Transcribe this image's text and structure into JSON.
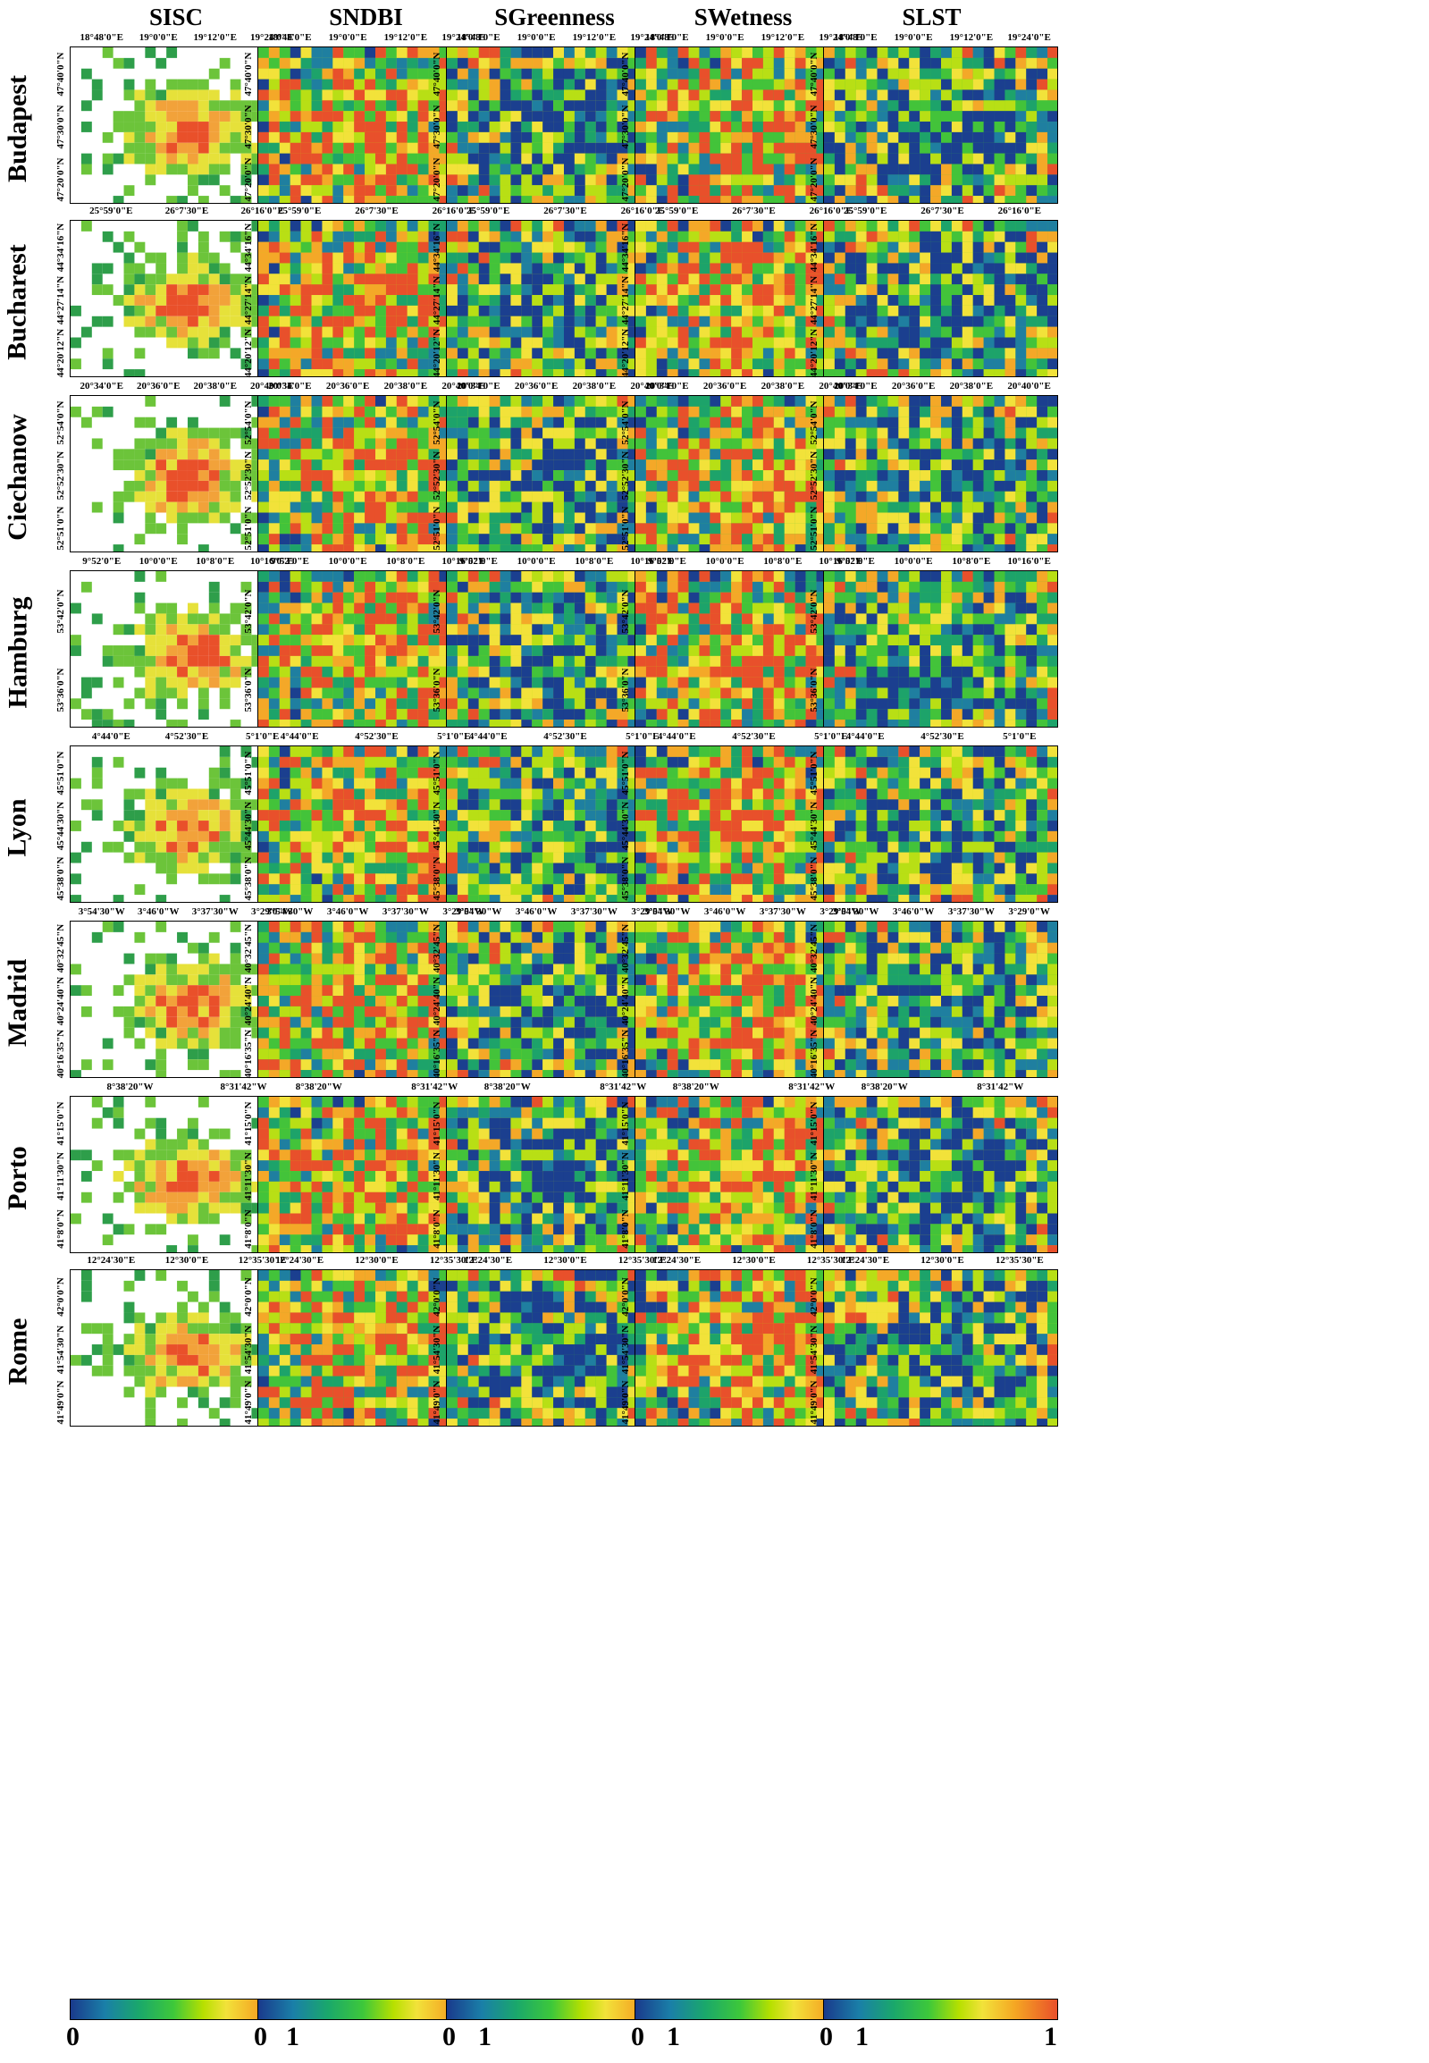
{
  "columns": [
    "SISC",
    "SNDBI",
    "SGreenness",
    "SWetness",
    "SLST"
  ],
  "colorbar": {
    "min_label": "0",
    "max_label": "1",
    "colors": [
      "#1a3a8c",
      "#1a7fa8",
      "#1aa86b",
      "#3ec83a",
      "#b7e000",
      "#f2e23a",
      "#f5a623",
      "#e9502a"
    ]
  },
  "palettes": {
    "urban": [
      "#ffffff",
      "#2e9e4a",
      "#6cc43a",
      "#e6e13a",
      "#f2a23a",
      "#e9502a"
    ],
    "index": [
      "#1b3f8f",
      "#1f7fa0",
      "#1da36a",
      "#43c33a",
      "#b8df15",
      "#f2e23a",
      "#f4a828",
      "#e8502b"
    ]
  },
  "rows": [
    {
      "city": "Budapest",
      "top": [
        "18°48'0\"E",
        "19°0'0\"E",
        "19°12'0\"E",
        "19°24'0\"E"
      ],
      "left": [
        "47°40'0\"N",
        "47°30'0\"N",
        "47°20'0\"N"
      ]
    },
    {
      "city": "Bucharest",
      "top": [
        "25°59'0\"E",
        "26°7'30\"E",
        "26°16'0\"E"
      ],
      "left": [
        "44°34'16\"N",
        "44°27'14\"N",
        "44°20'12\"N"
      ]
    },
    {
      "city": "Ciechanow",
      "top": [
        "20°34'0\"E",
        "20°36'0\"E",
        "20°38'0\"E",
        "20°40'0\"E"
      ],
      "left": [
        "52°54'0\"N",
        "52°52'30\"N",
        "52°51'0\"N"
      ]
    },
    {
      "city": "Hamburg",
      "top": [
        "9°52'0\"E",
        "10°0'0\"E",
        "10°8'0\"E",
        "10°16'0\"E"
      ],
      "left": [
        "53°42'0\"N",
        "53°36'0\"N"
      ]
    },
    {
      "city": "Lyon",
      "top": [
        "4°44'0\"E",
        "4°52'30\"E",
        "5°1'0\"E"
      ],
      "left": [
        "45°51'0\"N",
        "45°44'30\"N",
        "45°38'0\"N"
      ]
    },
    {
      "city": "Madrid",
      "top": [
        "3°54'30\"W",
        "3°46'0\"W",
        "3°37'30\"W",
        "3°29'0\"W"
      ],
      "left": [
        "40°32'45\"N",
        "40°24'40\"N",
        "40°16'35\"N"
      ]
    },
    {
      "city": "Porto",
      "top": [
        "8°38'20\"W",
        "8°31'42\"W"
      ],
      "left": [
        "41°15'0\"N",
        "41°11'30\"N",
        "41°8'0\"N"
      ]
    },
    {
      "city": "Rome",
      "top": [
        "12°24'30\"E",
        "12°30'0\"E",
        "12°35'30\"E"
      ],
      "left": [
        "42°0'0\"N",
        "41°54'30\"N",
        "41°49'0\"N"
      ]
    }
  ]
}
